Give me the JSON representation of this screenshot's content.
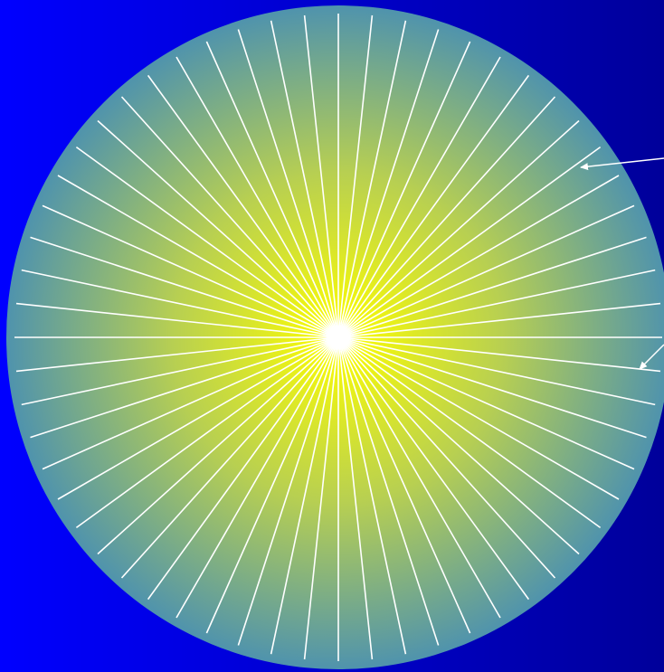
{
  "diagram": {
    "spoke_count": 60,
    "colors": {
      "background_left": "#0000ff",
      "background_right": "#00009a",
      "disc_center": "#ffff00",
      "disc_mid": "#b7cf52",
      "disc_edge": "#4f93ad",
      "spoke": "#ffffff",
      "arrow": "#ffffff"
    },
    "callout_arrows": [
      {
        "name": "callout-arrow-upper"
      },
      {
        "name": "callout-arrow-lower"
      }
    ]
  }
}
